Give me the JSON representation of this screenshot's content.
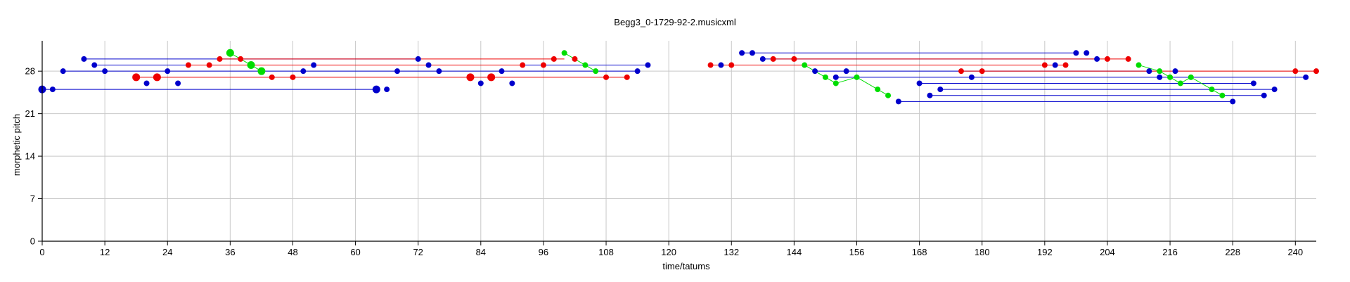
{
  "chart_data": {
    "type": "scatter",
    "title": "Begg3_0-1729-92-2.musicxml",
    "xlabel": "time/tatums",
    "ylabel": "morphetic pitch",
    "xlim": [
      0,
      244
    ],
    "ylim": [
      0,
      33
    ],
    "x_ticks": [
      0,
      12,
      24,
      36,
      48,
      60,
      72,
      84,
      96,
      108,
      120,
      132,
      144,
      156,
      168,
      180,
      192,
      204,
      216,
      228,
      240
    ],
    "y_ticks": [
      0,
      7,
      14,
      21,
      28
    ],
    "grid": true,
    "colors": {
      "blue": "#0000cc",
      "red": "#ee0000",
      "green": "#00dd00"
    },
    "series": [
      {
        "color": "blue",
        "values": [
          {
            "x": 0,
            "y": 25,
            "end": 64,
            "s": "large"
          },
          {
            "x": 2,
            "y": 25
          },
          {
            "x": 64,
            "y": 25,
            "s": "large"
          },
          {
            "x": 66,
            "y": 25
          },
          {
            "x": 4,
            "y": 28,
            "end": 114
          },
          {
            "x": 114,
            "y": 28
          },
          {
            "x": 8,
            "y": 30,
            "end": 72
          },
          {
            "x": 72,
            "y": 30
          },
          {
            "x": 10,
            "y": 29,
            "end": 116
          },
          {
            "x": 116,
            "y": 29
          },
          {
            "x": 12,
            "y": 28
          },
          {
            "x": 20,
            "y": 26
          },
          {
            "x": 24,
            "y": 28
          },
          {
            "x": 26,
            "y": 26
          },
          {
            "x": 50,
            "y": 28
          },
          {
            "x": 52,
            "y": 29
          },
          {
            "x": 68,
            "y": 28
          },
          {
            "x": 74,
            "y": 29
          },
          {
            "x": 76,
            "y": 28
          },
          {
            "x": 84,
            "y": 26
          },
          {
            "x": 88,
            "y": 28
          },
          {
            "x": 90,
            "y": 26
          },
          {
            "x": 130,
            "y": 29
          },
          {
            "x": 134,
            "y": 31,
            "end": 198
          },
          {
            "x": 136,
            "y": 31
          },
          {
            "x": 198,
            "y": 31
          },
          {
            "x": 138,
            "y": 30,
            "end": 202
          },
          {
            "x": 202,
            "y": 30
          },
          {
            "x": 148,
            "y": 28,
            "end": 212
          },
          {
            "x": 212,
            "y": 28
          },
          {
            "x": 152,
            "y": 27,
            "end": 242
          },
          {
            "x": 242,
            "y": 27
          },
          {
            "x": 154,
            "y": 28
          },
          {
            "x": 164,
            "y": 23,
            "end": 228
          },
          {
            "x": 228,
            "y": 23
          },
          {
            "x": 168,
            "y": 26,
            "end": 232
          },
          {
            "x": 232,
            "y": 26
          },
          {
            "x": 170,
            "y": 24,
            "end": 234
          },
          {
            "x": 234,
            "y": 24
          },
          {
            "x": 172,
            "y": 25,
            "end": 236
          },
          {
            "x": 236,
            "y": 25
          },
          {
            "x": 178,
            "y": 27
          },
          {
            "x": 194,
            "y": 29
          },
          {
            "x": 200,
            "y": 31
          },
          {
            "x": 214,
            "y": 27
          },
          {
            "x": 217,
            "y": 28
          }
        ]
      },
      {
        "color": "red",
        "values": [
          {
            "x": 18,
            "y": 27,
            "end": 112,
            "s": "large"
          },
          {
            "x": 22,
            "y": 27,
            "s": "large"
          },
          {
            "x": 28,
            "y": 29,
            "end": 92
          },
          {
            "x": 32,
            "y": 29
          },
          {
            "x": 34,
            "y": 30,
            "end": 100
          },
          {
            "x": 38,
            "y": 30
          },
          {
            "x": 44,
            "y": 27
          },
          {
            "x": 48,
            "y": 27
          },
          {
            "x": 82,
            "y": 27,
            "s": "large"
          },
          {
            "x": 86,
            "y": 27,
            "s": "large"
          },
          {
            "x": 92,
            "y": 29
          },
          {
            "x": 96,
            "y": 29
          },
          {
            "x": 98,
            "y": 30
          },
          {
            "x": 102,
            "y": 30
          },
          {
            "x": 108,
            "y": 27
          },
          {
            "x": 112,
            "y": 27
          },
          {
            "x": 128,
            "y": 29,
            "end": 196
          },
          {
            "x": 132,
            "y": 29
          },
          {
            "x": 140,
            "y": 30,
            "end": 208
          },
          {
            "x": 144,
            "y": 30
          },
          {
            "x": 176,
            "y": 28,
            "end": 244
          },
          {
            "x": 180,
            "y": 28
          },
          {
            "x": 192,
            "y": 29
          },
          {
            "x": 196,
            "y": 29
          },
          {
            "x": 204,
            "y": 30
          },
          {
            "x": 208,
            "y": 30
          },
          {
            "x": 240,
            "y": 28
          },
          {
            "x": 244,
            "y": 28
          }
        ]
      },
      {
        "color": "green",
        "values": [
          {
            "x": 36,
            "y": 31,
            "s": "large"
          },
          {
            "x": 40,
            "y": 29,
            "s": "large"
          },
          {
            "x": 42,
            "y": 28,
            "s": "large"
          },
          {
            "x": 100,
            "y": 31
          },
          {
            "x": 104,
            "y": 29
          },
          {
            "x": 106,
            "y": 28
          },
          {
            "x": 146,
            "y": 29
          },
          {
            "x": 150,
            "y": 27
          },
          {
            "x": 152,
            "y": 26
          },
          {
            "x": 156,
            "y": 27
          },
          {
            "x": 160,
            "y": 25
          },
          {
            "x": 162,
            "y": 24
          },
          {
            "x": 210,
            "y": 29
          },
          {
            "x": 214,
            "y": 28
          },
          {
            "x": 216,
            "y": 27
          },
          {
            "x": 218,
            "y": 26
          },
          {
            "x": 220,
            "y": 27
          },
          {
            "x": 224,
            "y": 25
          },
          {
            "x": 226,
            "y": 24
          }
        ]
      }
    ]
  }
}
